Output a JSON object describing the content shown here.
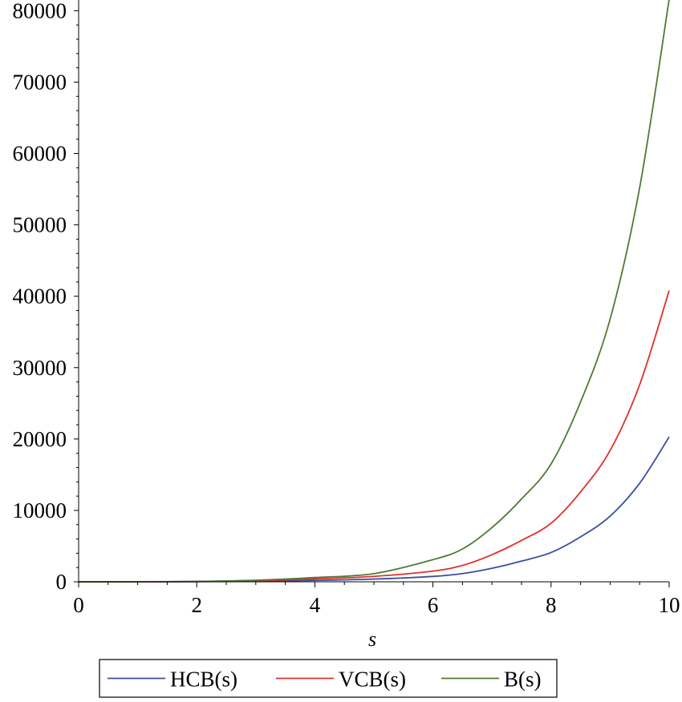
{
  "chart_data": {
    "type": "line",
    "xlabel": "s",
    "ylabel": "",
    "xlim": [
      0,
      10
    ],
    "ylim": [
      0,
      81500
    ],
    "x_ticks": [
      0,
      2,
      4,
      6,
      8,
      10
    ],
    "x_tick_labels": [
      "0",
      "2",
      "4",
      "6",
      "8",
      "10"
    ],
    "y_ticks": [
      0,
      10000,
      20000,
      30000,
      40000,
      50000,
      60000,
      70000,
      80000
    ],
    "y_tick_labels": [
      "0",
      "10000",
      "20000",
      "30000",
      "40000",
      "50000",
      "60000",
      "70000",
      "80000"
    ],
    "grid": false,
    "legend_position": "bottom",
    "x": [
      0,
      1,
      2,
      3,
      4,
      5,
      6,
      6.5,
      7,
      7.5,
      8,
      8.5,
      9,
      9.5,
      10
    ],
    "series": [
      {
        "name": "HCB(s)",
        "color": "#3b4ea0",
        "values": [
          1,
          4,
          20,
          75,
          200,
          380,
          750,
          1150,
          1900,
          2900,
          4100,
          6300,
          9200,
          13800,
          20300
        ]
      },
      {
        "name": "VCB(s)",
        "color": "#e0312a",
        "values": [
          2,
          8,
          40,
          150,
          400,
          760,
          1500,
          2300,
          3800,
          5800,
          8200,
          12600,
          18400,
          27600,
          40800
        ]
      },
      {
        "name": "B(s)",
        "color": "#4f7a35",
        "values": [
          3,
          12,
          60,
          225,
          600,
          1140,
          3100,
          4600,
          7600,
          11600,
          16500,
          25200,
          36800,
          55200,
          81600
        ]
      }
    ]
  }
}
